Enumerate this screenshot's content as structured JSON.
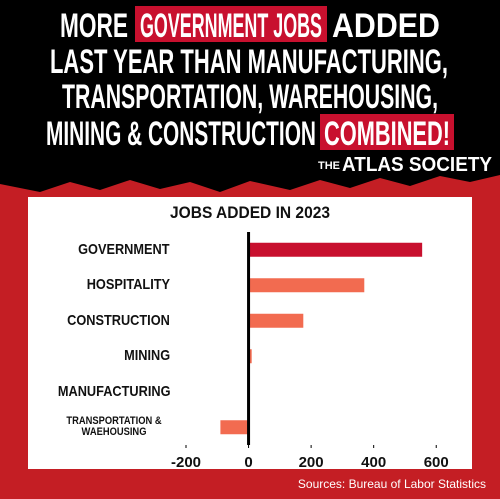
{
  "headline": [
    "MORE",
    "GOVERNMENT JOBS",
    "ADDED",
    "LAST YEAR THAN MANUFACTURING,",
    "TRANSPORTATION, WAREHOUSING,",
    "MINING & CONSTRUCTION",
    "COMBINED!"
  ],
  "brand": [
    "THE",
    "ATLAS SOCIETY"
  ],
  "source": "Sources: Bureau of Labor Statistics",
  "chart_data": {
    "type": "hbar",
    "title": "JOBS ADDED IN 2023",
    "categories": [
      "GOVERNMENT",
      "HOSPITALITY",
      "CONSTRUCTION",
      "MINING",
      "MANUFACTURING",
      "TRANSPORTATION & WAEHOUSING"
    ],
    "values": [
      555,
      370,
      175,
      10,
      0,
      -90
    ],
    "colors": [
      "#c8102e",
      "#f26b50",
      "#f26b50",
      "#f26b50",
      "#f26b50",
      "#f26b50"
    ],
    "xlim": [
      -200,
      660
    ],
    "xticks": [
      -200,
      0,
      200,
      400,
      600
    ]
  }
}
